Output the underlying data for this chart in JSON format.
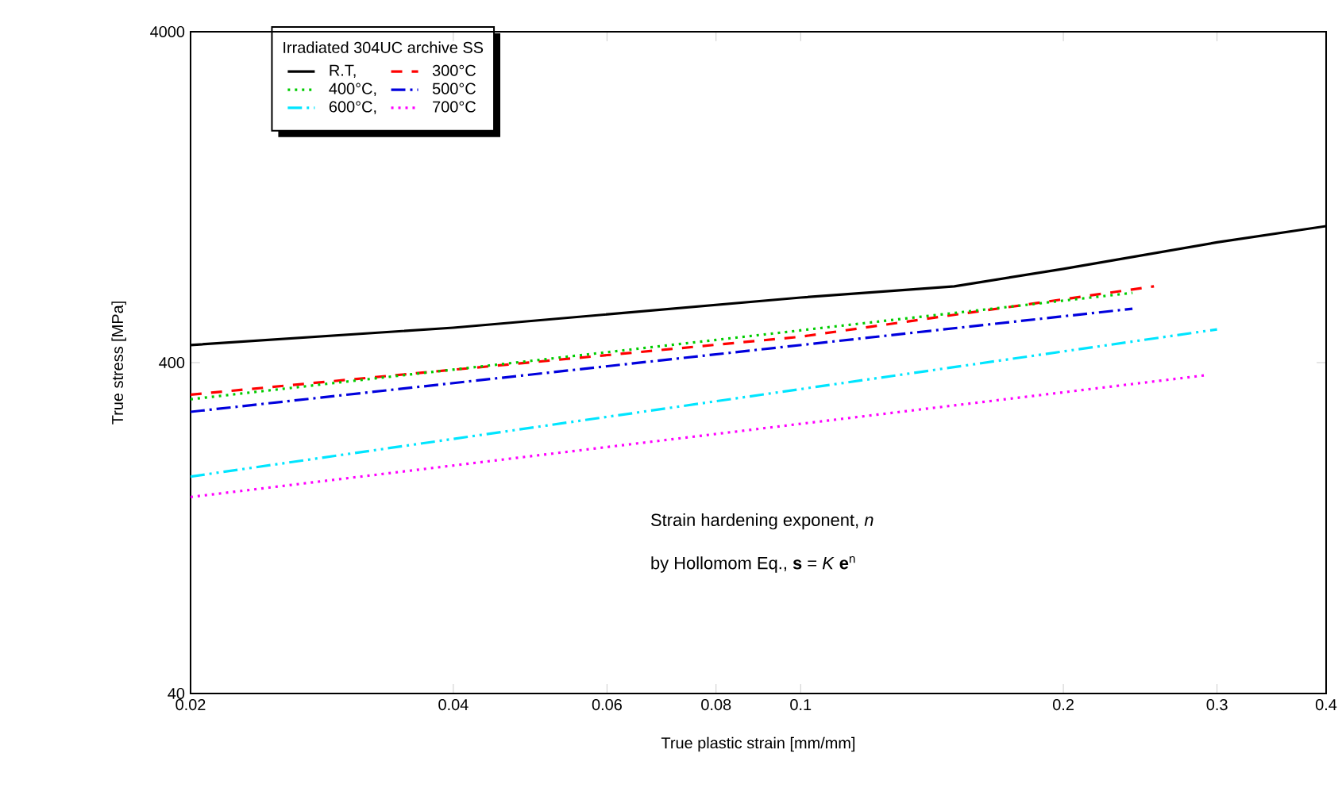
{
  "chart_data": {
    "type": "line",
    "xlabel": "True plastic strain [mm/mm]",
    "ylabel": "True stress [MPa]",
    "legend_title": "Irradiated 304UC archive SS",
    "log": "xy",
    "xlim": [
      0.02,
      0.4
    ],
    "ylim": [
      40,
      4000
    ],
    "xticks": [
      0.02,
      0.04,
      0.06,
      0.08,
      0.1,
      0.2,
      0.3,
      0.4
    ],
    "yticks": [
      40,
      400,
      4000
    ],
    "grid": false,
    "legend": "top left",
    "marker": "none",
    "annotations": [
      "Strain hardening exponent, *n*",
      "by Hollomom Eq., **s** = *K* **e**$^{n}$"
    ],
    "series": [
      {
        "name": "R.T,",
        "color": "#000000",
        "line_style": "solid",
        "x": [
          0.02,
          0.04,
          0.1,
          0.15,
          0.2,
          0.3,
          0.4
        ],
        "values": [
          452,
          510,
          629,
          680,
          768,
          924,
          1034
        ]
      },
      {
        "name": "300°C",
        "color": "#ff0000",
        "line_style": "dashed",
        "x": [
          0.02,
          0.1,
          0.254
        ],
        "values": [
          320,
          479,
          680
        ]
      },
      {
        "name": "400°C,",
        "color": "#00cc00",
        "line_style": "dotted",
        "x": [
          0.02,
          0.24
        ],
        "values": [
          310,
          650
        ]
      },
      {
        "name": "500°C",
        "color": "#0000dd",
        "line_style": "dashdot",
        "x": [
          0.02,
          0.24
        ],
        "values": [
          284,
          582
        ]
      },
      {
        "name": "600°C,",
        "color": "#00e5ff",
        "line_style": "dashdotdot",
        "x": [
          0.02,
          0.3
        ],
        "values": [
          181,
          504
        ]
      },
      {
        "name": "700°C",
        "color": "#ff00ff",
        "line_style": "dotted",
        "x": [
          0.02,
          0.29
        ],
        "values": [
          157,
          366
        ]
      }
    ]
  }
}
